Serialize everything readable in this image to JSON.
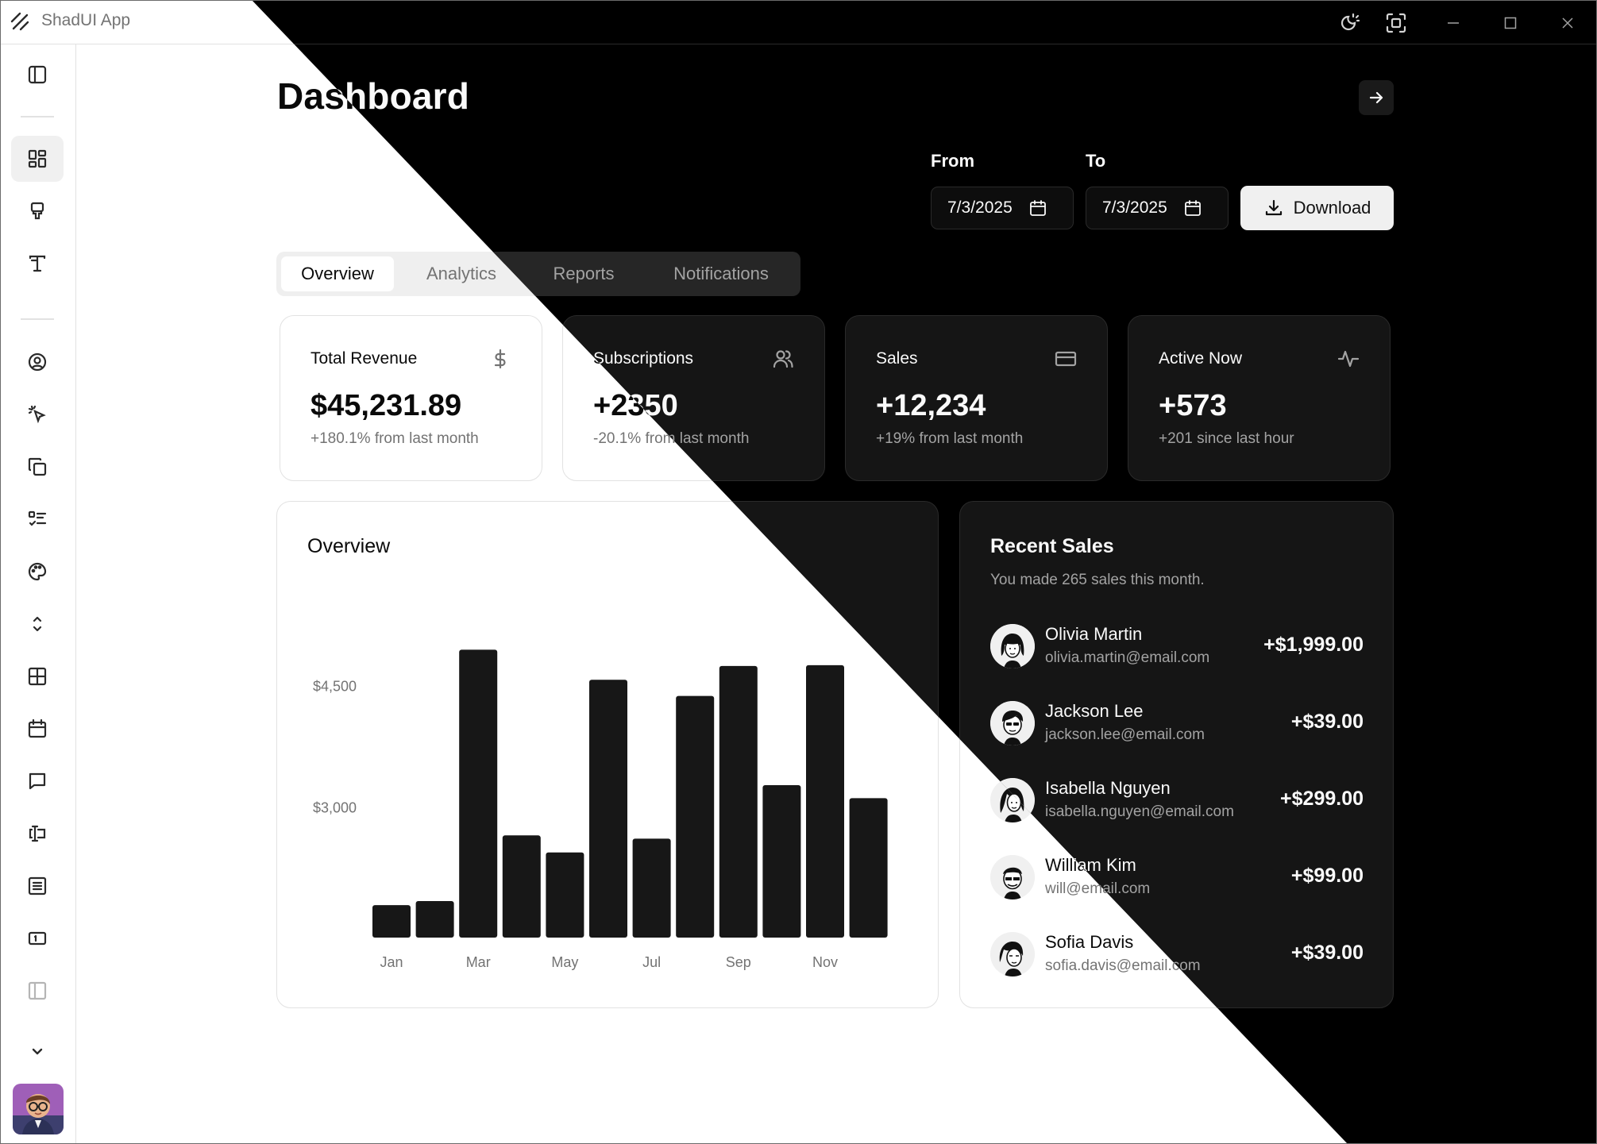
{
  "app": {
    "title": "ShadUI App"
  },
  "page": {
    "title": "Dashboard"
  },
  "filters": {
    "from_label": "From",
    "to_label": "To",
    "from_value": "7/3/2025",
    "to_value": "7/3/2025",
    "download_label": "Download"
  },
  "tabs": [
    {
      "label": "Overview",
      "active": true
    },
    {
      "label": "Analytics",
      "active": false
    },
    {
      "label": "Reports",
      "active": false
    },
    {
      "label": "Notifications",
      "active": false
    }
  ],
  "stats": [
    {
      "title": "Total Revenue",
      "value": "$45,231.89",
      "note": "+180.1% from last month",
      "icon": "dollar-icon"
    },
    {
      "title": "Subscriptions",
      "value": "+2350",
      "note": "-20.1% from last month",
      "icon": "users-icon"
    },
    {
      "title": "Sales",
      "value": "+12,234",
      "note": "+19% from last month",
      "icon": "credit-card-icon"
    },
    {
      "title": "Active Now",
      "value": "+573",
      "note": "+201 since last hour",
      "icon": "activity-icon"
    }
  ],
  "overview": {
    "title": "Overview"
  },
  "chart_data": {
    "type": "bar",
    "title": "Overview",
    "categories": [
      "Jan",
      "Feb",
      "Mar",
      "Apr",
      "May",
      "Jun",
      "Jul",
      "Aug",
      "Sep",
      "Oct",
      "Nov",
      "Dec"
    ],
    "values": [
      1800,
      1850,
      4950,
      2660,
      2450,
      4580,
      2620,
      4380,
      4750,
      3280,
      4760,
      3120
    ],
    "x_tick_labels": [
      "Jan",
      "Mar",
      "May",
      "Jul",
      "Sep",
      "Nov"
    ],
    "y_tick_values": [
      3000,
      4500
    ],
    "y_tick_labels": [
      "$3,000",
      "$4,500"
    ],
    "ylim": [
      1400,
      5150
    ],
    "grid": false,
    "legend": "none"
  },
  "recent_sales": {
    "title": "Recent Sales",
    "subtitle": "You made 265 sales this month.",
    "items": [
      {
        "name": "Olivia Martin",
        "email": "olivia.martin@email.com",
        "amount": "+$1,999.00"
      },
      {
        "name": "Jackson Lee",
        "email": "jackson.lee@email.com",
        "amount": "+$39.00"
      },
      {
        "name": "Isabella Nguyen",
        "email": "isabella.nguyen@email.com",
        "amount": "+$299.00"
      },
      {
        "name": "William Kim",
        "email": "will@email.com",
        "amount": "+$99.00"
      },
      {
        "name": "Sofia Davis",
        "email": "sofia.davis@email.com",
        "amount": "+$39.00"
      }
    ]
  },
  "sidebar": {
    "items": [
      {
        "icon": "sidebar-toggle-icon"
      },
      {
        "icon": "dashboard-icon",
        "active": true
      },
      {
        "icon": "paint-brush-icon"
      },
      {
        "icon": "typography-icon"
      },
      {
        "icon": "user-circle-icon"
      },
      {
        "icon": "cursor-click-icon"
      },
      {
        "icon": "copy-icon"
      },
      {
        "icon": "checklist-icon"
      },
      {
        "icon": "palette-icon"
      },
      {
        "icon": "chevrons-up-down-icon"
      },
      {
        "icon": "table-icon"
      },
      {
        "icon": "calendar-icon"
      },
      {
        "icon": "message-icon"
      },
      {
        "icon": "text-cursor-input-icon"
      },
      {
        "icon": "list-icon"
      },
      {
        "icon": "toast-icon"
      },
      {
        "icon": "sidebar-panel-icon"
      },
      {
        "icon": "chevron-down-icon"
      }
    ]
  },
  "window_controls": [
    "theme-toggle-icon",
    "screenshot-icon",
    "minimize-icon",
    "maximize-icon",
    "close-icon"
  ]
}
